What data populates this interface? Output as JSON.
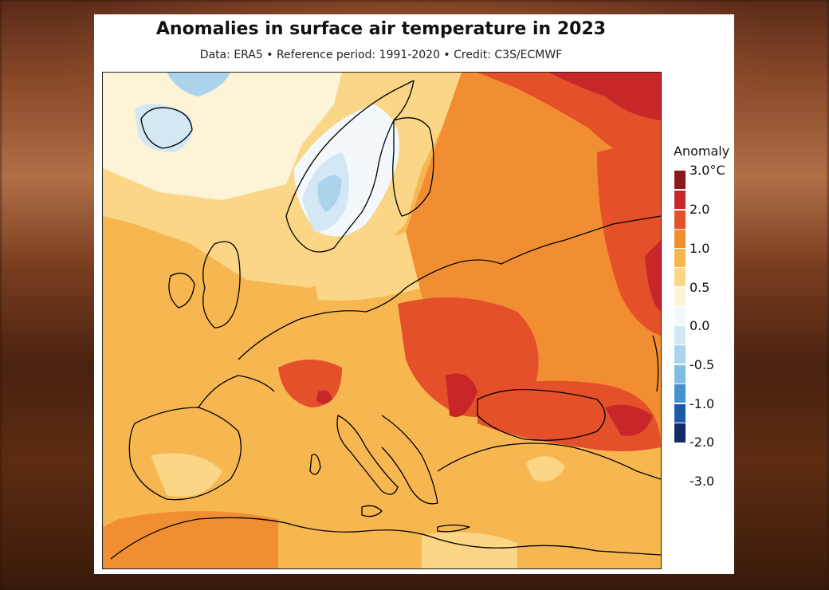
{
  "title": "Anomalies in surface air temperature in 2023",
  "subtitle": "Data: ERA5 • Reference period: 1991-2020 • Credit: C3S/ECMWF",
  "legend": {
    "title": "Anomaly",
    "bins_top_to_bottom": [
      {
        "color": "#8b1a1a"
      },
      {
        "color": "#c8272a"
      },
      {
        "color": "#e4502a"
      },
      {
        "color": "#f28e32"
      },
      {
        "color": "#f6b650"
      },
      {
        "color": "#fad686"
      },
      {
        "color": "#fdf3d6"
      },
      {
        "color": "#f2f8fc"
      },
      {
        "color": "#d3e8f4"
      },
      {
        "color": "#acd3ec"
      },
      {
        "color": "#7fbde5"
      },
      {
        "color": "#4592cc"
      },
      {
        "color": "#1f5aa8"
      },
      {
        "color": "#132c66"
      }
    ],
    "tick_labels": [
      "3.0°C",
      "2.0",
      "1.0",
      "0.5",
      "0.0",
      "-0.5",
      "-1.0",
      "-2.0",
      "-3.0"
    ]
  },
  "map": {
    "region": "Europe",
    "variable": "surface air temperature anomaly",
    "year": "2023",
    "land_outline_color": "#000000",
    "anomaly_fields": [
      {
        "area": "North Atlantic / Iceland",
        "color": "#d3e8f4"
      },
      {
        "area": "Norway / Scandinavian mountains",
        "color": "#acd3ec"
      },
      {
        "area": "Sweden / Finland",
        "color": "#f2f8fc"
      },
      {
        "area": "North Sea / Baltic",
        "color": "#fad686"
      },
      {
        "area": "Western Europe / Iberia",
        "color": "#f6b650"
      },
      {
        "area": "Central / Eastern Europe",
        "color": "#e4502a"
      },
      {
        "area": "Northern Russia",
        "color": "#c8272a"
      },
      {
        "area": "Black Sea / Caucasus",
        "color": "#e4502a"
      }
    ]
  }
}
